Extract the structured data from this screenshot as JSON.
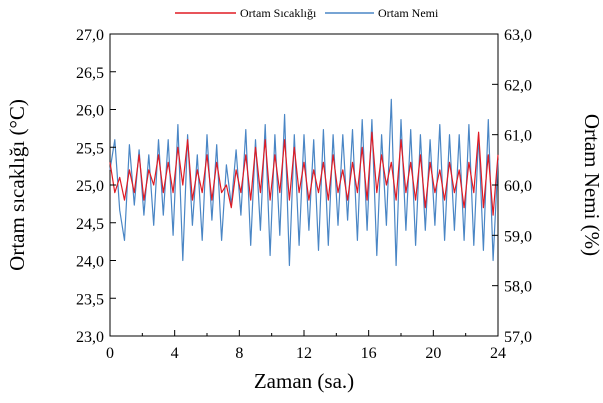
{
  "chart_data": {
    "type": "line",
    "title": "",
    "xlabel": "Zaman (sa.)",
    "ylabel": "Ortam sıcaklığı (°C)",
    "y2label": "Ortam Nemi (%)",
    "xlim": [
      0,
      24
    ],
    "ylim": [
      23.0,
      27.0
    ],
    "y2lim": [
      57.0,
      63.0
    ],
    "x_ticks": [
      "0",
      "4",
      "8",
      "12",
      "16",
      "20",
      "24"
    ],
    "y_ticks": [
      "23,0",
      "23,5",
      "24,0",
      "24,5",
      "25,0",
      "25,5",
      "26,0",
      "26,5",
      "27,0"
    ],
    "y2_ticks": [
      "57,0",
      "58,0",
      "59,0",
      "60,0",
      "61,0",
      "62,0",
      "63,0"
    ],
    "legend_position": "top",
    "grid": false,
    "series": [
      {
        "name": "Ortam Sıcaklığı",
        "axis": "left",
        "color": "#e01b24",
        "x": [
          0.0,
          0.3,
          0.6,
          0.9,
          1.2,
          1.5,
          1.8,
          2.1,
          2.4,
          2.7,
          3.0,
          3.3,
          3.6,
          3.9,
          4.2,
          4.5,
          4.8,
          5.1,
          5.4,
          5.7,
          6.0,
          6.3,
          6.6,
          6.9,
          7.2,
          7.5,
          7.8,
          8.1,
          8.4,
          8.7,
          9.0,
          9.3,
          9.6,
          9.9,
          10.2,
          10.5,
          10.8,
          11.1,
          11.4,
          11.7,
          12.0,
          12.3,
          12.6,
          12.9,
          13.2,
          13.5,
          13.8,
          14.1,
          14.4,
          14.7,
          15.0,
          15.3,
          15.6,
          15.9,
          16.2,
          16.5,
          16.8,
          17.1,
          17.4,
          17.7,
          18.0,
          18.3,
          18.6,
          18.9,
          19.2,
          19.5,
          19.8,
          20.1,
          20.4,
          20.7,
          21.0,
          21.3,
          21.6,
          21.9,
          22.2,
          22.5,
          22.8,
          23.1,
          23.4,
          23.7,
          24.0
        ],
        "values": [
          25.3,
          24.9,
          25.1,
          24.8,
          25.2,
          24.9,
          25.4,
          24.8,
          25.2,
          25.0,
          25.4,
          24.9,
          25.3,
          24.9,
          25.5,
          25.0,
          25.6,
          24.8,
          25.2,
          24.9,
          25.4,
          24.8,
          25.3,
          24.9,
          25.0,
          24.7,
          25.2,
          24.9,
          25.4,
          24.8,
          25.5,
          24.9,
          25.6,
          24.8,
          25.4,
          24.9,
          25.6,
          24.8,
          25.5,
          24.9,
          25.3,
          24.8,
          25.2,
          24.9,
          25.3,
          24.8,
          25.4,
          24.9,
          25.2,
          24.8,
          25.3,
          24.9,
          25.5,
          24.8,
          25.7,
          24.9,
          25.4,
          25.0,
          25.3,
          24.8,
          25.6,
          24.9,
          25.3,
          24.8,
          25.4,
          24.7,
          25.3,
          24.9,
          25.2,
          24.8,
          25.3,
          24.9,
          25.2,
          24.7,
          25.3,
          24.9,
          25.7,
          24.7,
          25.4,
          24.6,
          25.4
        ]
      },
      {
        "name": "Ortam Nemi",
        "axis": "right",
        "color": "#4a86c5",
        "x": [
          0.0,
          0.3,
          0.6,
          0.9,
          1.2,
          1.5,
          1.8,
          2.1,
          2.4,
          2.7,
          3.0,
          3.3,
          3.6,
          3.9,
          4.2,
          4.5,
          4.8,
          5.1,
          5.4,
          5.7,
          6.0,
          6.3,
          6.6,
          6.9,
          7.2,
          7.5,
          7.8,
          8.1,
          8.4,
          8.7,
          9.0,
          9.3,
          9.6,
          9.9,
          10.2,
          10.5,
          10.8,
          11.1,
          11.4,
          11.7,
          12.0,
          12.3,
          12.6,
          12.9,
          13.2,
          13.5,
          13.8,
          14.1,
          14.4,
          14.7,
          15.0,
          15.3,
          15.6,
          15.9,
          16.2,
          16.5,
          16.8,
          17.1,
          17.4,
          17.7,
          18.0,
          18.3,
          18.6,
          18.9,
          19.2,
          19.5,
          19.8,
          20.1,
          20.4,
          20.7,
          21.0,
          21.3,
          21.6,
          21.9,
          22.2,
          22.5,
          22.8,
          23.1,
          23.4,
          23.7,
          24.0
        ],
        "values": [
          60.3,
          60.9,
          59.5,
          58.9,
          60.8,
          59.6,
          60.7,
          59.4,
          60.6,
          59.2,
          60.9,
          59.4,
          60.9,
          59.0,
          61.2,
          58.5,
          61.0,
          59.2,
          60.6,
          58.9,
          61.0,
          59.3,
          60.8,
          58.9,
          60.4,
          59.6,
          60.7,
          59.4,
          61.1,
          58.8,
          60.9,
          59.1,
          61.2,
          58.6,
          61.0,
          59.0,
          61.4,
          58.4,
          61.0,
          58.8,
          61.0,
          59.1,
          60.9,
          58.7,
          61.1,
          58.8,
          61.0,
          59.2,
          61.0,
          59.3,
          61.1,
          58.9,
          61.3,
          59.1,
          61.3,
          58.6,
          61.0,
          59.2,
          61.7,
          58.4,
          61.3,
          59.1,
          61.1,
          58.8,
          61.0,
          59.1,
          60.9,
          59.2,
          61.2,
          58.9,
          61.0,
          59.1,
          61.0,
          58.9,
          61.2,
          58.8,
          61.0,
          58.7,
          61.3,
          58.5,
          60.5
        ]
      }
    ]
  }
}
